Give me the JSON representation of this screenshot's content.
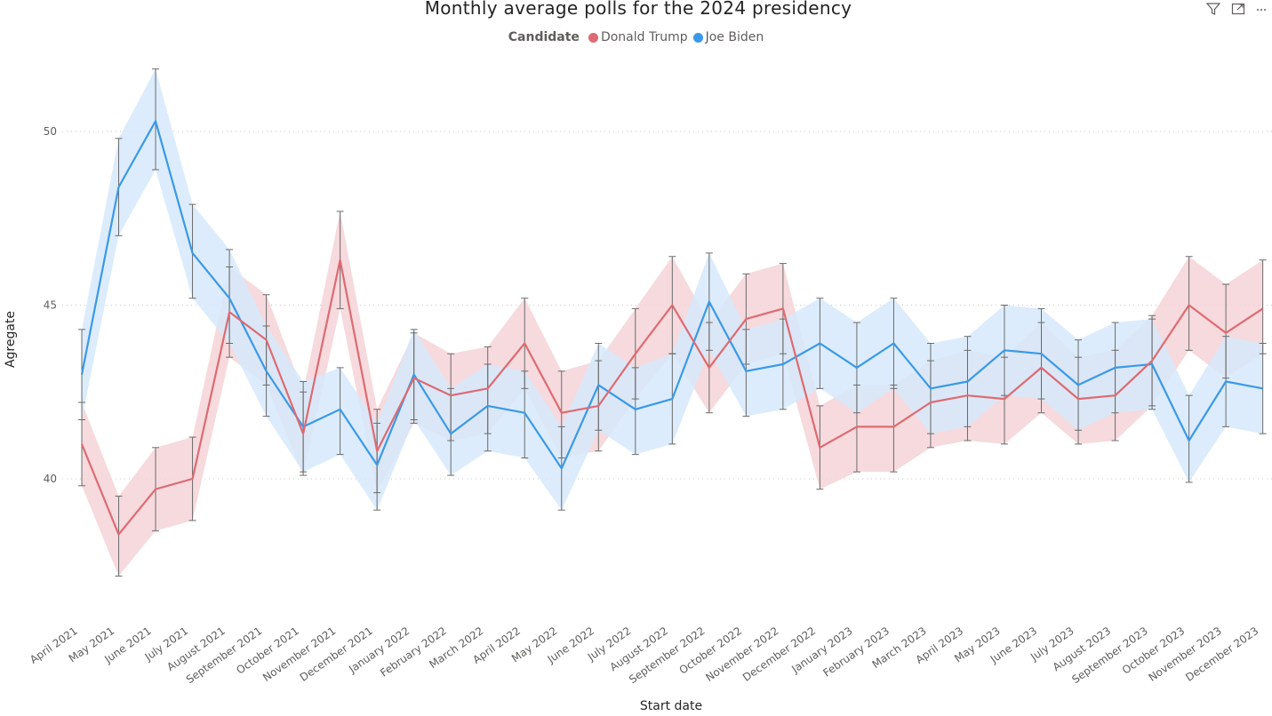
{
  "toolbar": {
    "filter_icon": "filter-icon",
    "focus_icon": "focus-mode-icon",
    "more_icon": "more-options-icon"
  },
  "chart_data": {
    "type": "line",
    "title": "Monthly average polls for the 2024 presidency",
    "xlabel": "Start date",
    "ylabel": "Agregate",
    "legend_title": "Candidate",
    "legend_position": "top-center",
    "grid": true,
    "ylim": [
      36,
      53
    ],
    "yticks": [
      40,
      45,
      50
    ],
    "categories": [
      "April 2021",
      "May 2021",
      "June 2021",
      "July 2021",
      "August 2021",
      "September 2021",
      "October 2021",
      "November 2021",
      "December 2021",
      "January 2022",
      "February 2022",
      "March 2022",
      "April 2022",
      "May 2022",
      "June 2022",
      "July 2022",
      "August 2022",
      "September 2022",
      "October 2022",
      "November 2022",
      "December 2022",
      "January 2023",
      "February 2023",
      "March 2023",
      "April 2023",
      "May 2023",
      "June 2023",
      "July 2023",
      "August 2023",
      "September 2023",
      "October 2023",
      "November 2023",
      "December 2023"
    ],
    "series": [
      {
        "name": "Donald Trump",
        "color": "#dd6b73",
        "band_color": "#f4d4d7",
        "values": [
          41.0,
          38.4,
          39.7,
          40.0,
          44.8,
          44.0,
          41.3,
          46.3,
          40.8,
          42.9,
          42.4,
          42.6,
          43.9,
          41.9,
          42.1,
          43.6,
          45.0,
          43.2,
          44.6,
          44.9,
          40.9,
          41.5,
          41.5,
          42.2,
          42.4,
          42.3,
          43.2,
          42.3,
          42.4,
          43.4,
          45.0,
          44.2,
          44.9
        ],
        "lower": [
          39.8,
          37.2,
          38.5,
          38.8,
          43.5,
          42.7,
          40.1,
          44.9,
          39.6,
          41.6,
          41.1,
          41.3,
          42.6,
          40.6,
          40.8,
          42.3,
          43.6,
          41.9,
          43.3,
          43.6,
          39.7,
          40.2,
          40.2,
          40.9,
          41.1,
          41.0,
          41.9,
          41.0,
          41.1,
          42.1,
          43.7,
          42.9,
          43.6
        ],
        "upper": [
          42.2,
          39.5,
          40.9,
          41.2,
          46.1,
          45.3,
          42.5,
          47.7,
          42.0,
          44.2,
          43.6,
          43.8,
          45.2,
          43.1,
          43.4,
          44.9,
          46.4,
          44.5,
          45.9,
          46.2,
          42.1,
          42.7,
          42.7,
          43.4,
          43.7,
          43.5,
          44.5,
          43.5,
          43.7,
          44.7,
          46.4,
          45.6,
          46.3
        ]
      },
      {
        "name": "Joe Biden",
        "color": "#3a99e8",
        "band_color": "#d6e9fb",
        "values": [
          43.0,
          48.4,
          50.3,
          46.5,
          45.2,
          43.1,
          41.5,
          42.0,
          40.4,
          43.0,
          41.3,
          42.1,
          41.9,
          40.3,
          42.7,
          42.0,
          42.3,
          45.1,
          43.1,
          43.3,
          43.9,
          43.2,
          43.9,
          42.6,
          42.8,
          43.7,
          43.6,
          42.7,
          43.2,
          43.3,
          41.1,
          42.8,
          42.6
        ],
        "lower": [
          41.7,
          47.0,
          48.9,
          45.2,
          43.9,
          41.8,
          40.2,
          40.7,
          39.1,
          41.7,
          40.1,
          40.8,
          40.6,
          39.1,
          41.4,
          40.7,
          41.0,
          43.7,
          41.8,
          42.0,
          42.6,
          41.9,
          42.6,
          41.3,
          41.5,
          42.4,
          42.3,
          41.4,
          41.9,
          42.0,
          39.9,
          41.5,
          41.3
        ],
        "upper": [
          44.3,
          49.8,
          51.8,
          47.9,
          46.6,
          44.4,
          42.8,
          43.2,
          41.6,
          44.3,
          42.6,
          43.3,
          43.1,
          41.5,
          43.9,
          43.2,
          43.6,
          46.5,
          44.3,
          44.6,
          45.2,
          44.5,
          45.2,
          43.9,
          44.1,
          45.0,
          44.9,
          44.0,
          44.5,
          44.6,
          42.4,
          44.1,
          43.9
        ]
      }
    ]
  }
}
